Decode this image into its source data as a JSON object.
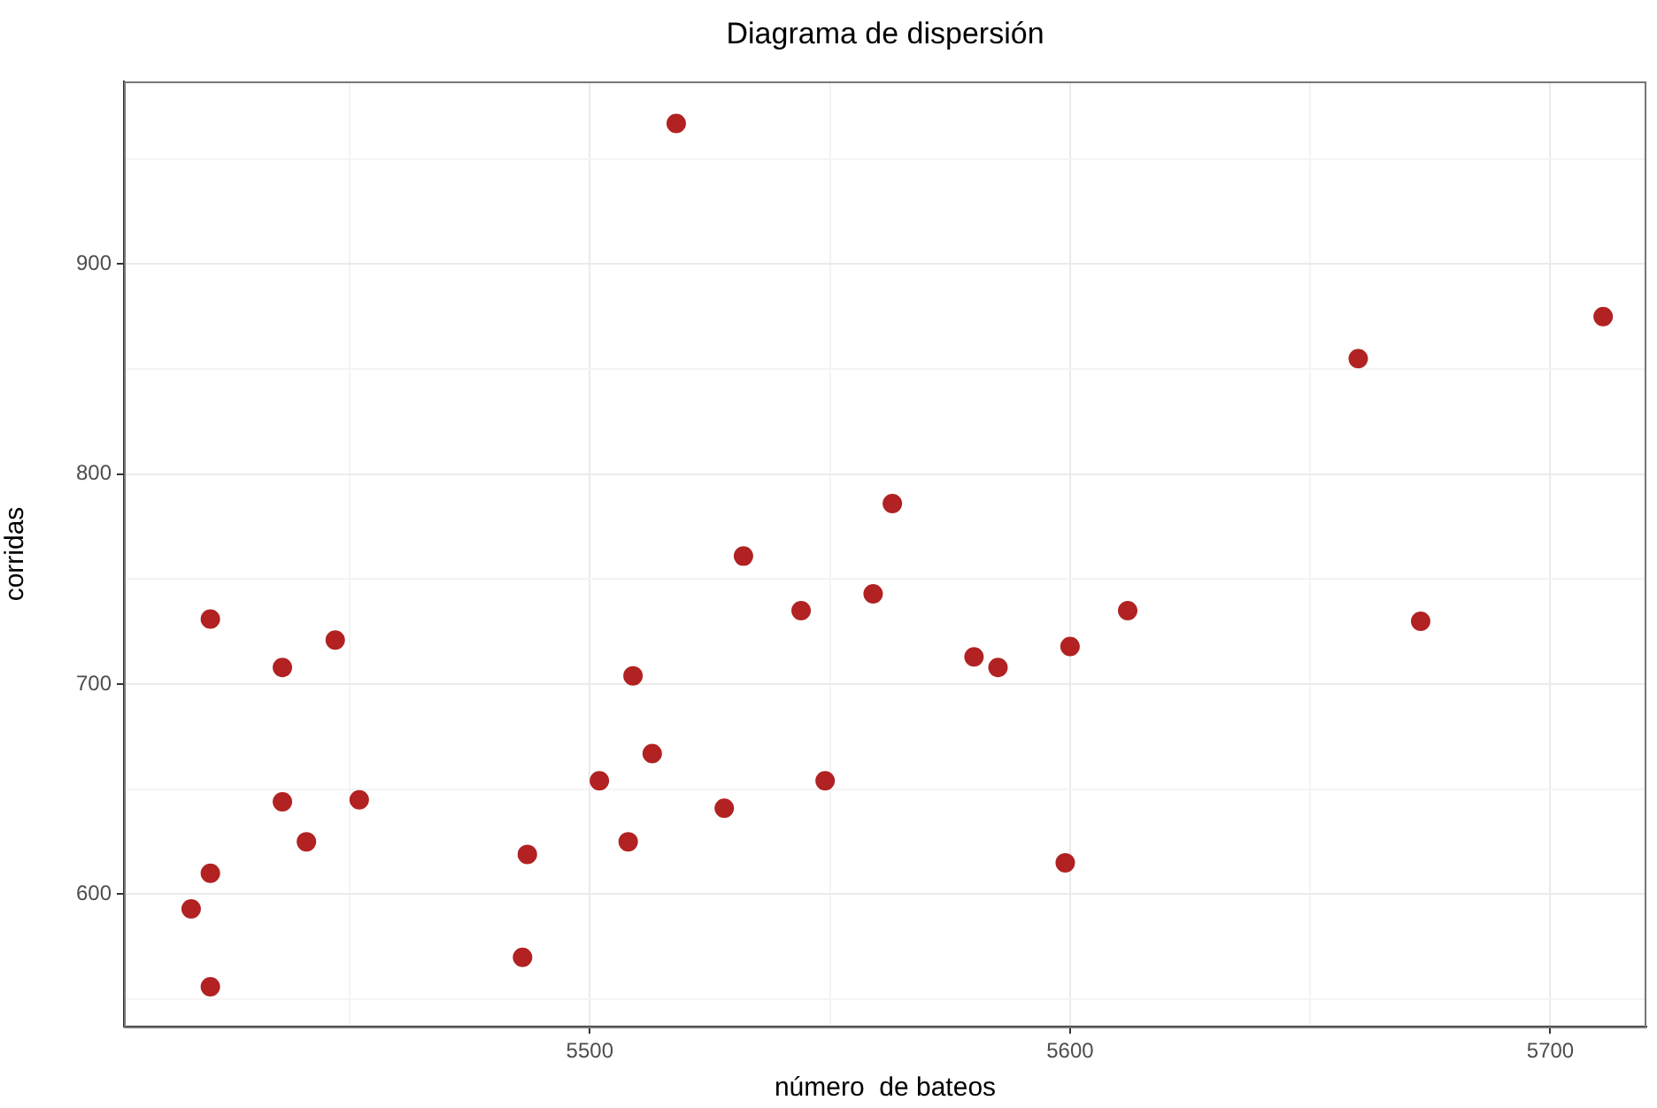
{
  "chart_data": {
    "type": "scatter",
    "title": "Diagrama de dispersión",
    "xlabel": "número  de bateos",
    "ylabel": "corridas",
    "color": "#b22222",
    "marker": "circle",
    "grid": true,
    "x": [
      5518,
      5660,
      5711,
      5563,
      5532,
      5421,
      5436,
      5447,
      5436,
      5441,
      5452,
      5421,
      5417,
      5421,
      5486,
      5487,
      5502,
      5508,
      5509,
      5513,
      5528,
      5544,
      5549,
      5559,
      5580,
      5585,
      5600,
      5612,
      5599,
      5673
    ],
    "values": [
      967,
      855,
      875,
      786,
      761,
      731,
      708,
      721,
      644,
      625,
      645,
      610,
      593,
      556,
      570,
      619,
      654,
      625,
      704,
      667,
      641,
      735,
      654,
      743,
      713,
      708,
      718,
      735,
      615,
      730
    ],
    "xlim": [
      5403,
      5720
    ],
    "ylim": [
      537,
      987
    ],
    "xticks": [
      {
        "value": 5450,
        "label": null
      },
      5500,
      {
        "value": 5550,
        "label": null
      },
      5600,
      {
        "value": 5650,
        "label": null
      },
      5700
    ],
    "yticks": [
      {
        "value": 550,
        "label": null
      },
      600,
      {
        "value": 650,
        "label": null
      },
      700,
      {
        "value": 750,
        "label": null
      },
      800,
      {
        "value": 850,
        "label": null
      },
      900,
      {
        "value": 950,
        "label": null
      }
    ]
  }
}
